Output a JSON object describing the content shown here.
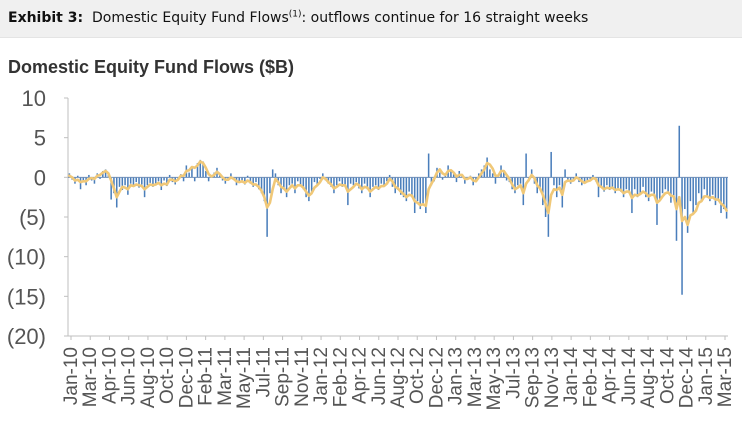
{
  "header": {
    "exhibit_label": "Exhibit 3:",
    "title_main": "Domestic Equity Fund Flows",
    "title_sup": "(1)",
    "title_rest": ": outflows continue for 16 straight weeks"
  },
  "chart_data": {
    "type": "bar",
    "title": "Domestic Equity Fund Flows ($B)",
    "xlabel": "",
    "ylabel": "",
    "ylim": [
      -20,
      10
    ],
    "yticks": [
      10,
      5,
      0,
      -5,
      -10,
      -15,
      -20
    ],
    "ytick_labels": [
      "10",
      "5",
      "0",
      "(5)",
      "(10)",
      "(15)",
      "(20)"
    ],
    "grid": false,
    "legend": "none",
    "colors": {
      "bars": "#4a7ebb",
      "line": "#f0c878",
      "axis": "#bfbfbf"
    },
    "x_labels": [
      "Jan-10",
      "Mar-10",
      "Apr-10",
      "Jun-10",
      "Aug-10",
      "Oct-10",
      "Dec-10",
      "Feb-11",
      "Mar-11",
      "May-11",
      "Jul-11",
      "Sep-11",
      "Nov-11",
      "Jan-12",
      "Feb-12",
      "Apr-12",
      "Jun-12",
      "Aug-12",
      "Oct-12",
      "Dec-12",
      "Jan-13",
      "Mar-13",
      "May-13",
      "Jul-13",
      "Sep-13",
      "Nov-13",
      "Jan-14",
      "Feb-14",
      "Apr-14",
      "Jun-14",
      "Aug-14",
      "Oct-14",
      "Dec-14",
      "Jan-15",
      "Mar-15"
    ],
    "series": [
      {
        "chart_type": "bar",
        "values": [
          0.5,
          -0.3,
          -0.8,
          0.2,
          -1.5,
          -0.6,
          -1.0,
          0.3,
          -0.4,
          -0.8,
          0.5,
          -0.2,
          0.8,
          1.0,
          0.4,
          -2.8,
          -2.0,
          -3.8,
          -1.2,
          -1.6,
          -1.0,
          -2.2,
          -0.8,
          -1.1,
          -0.6,
          -1.3,
          -0.9,
          -2.5,
          -1.0,
          -0.7,
          -1.2,
          -0.8,
          -0.5,
          -1.6,
          -0.4,
          -1.1,
          0.3,
          -0.6,
          -0.9,
          -0.2,
          0.4,
          -0.5,
          1.5,
          0.6,
          1.2,
          -0.5,
          1.8,
          2.2,
          2.0,
          0.8,
          -0.5,
          0.2,
          0.6,
          1.2,
          0.3,
          -0.4,
          -0.8,
          -0.2,
          0.5,
          -0.3,
          -1.0,
          -0.6,
          -0.4,
          -0.9,
          0.2,
          -0.8,
          -1.2,
          -0.6,
          -1.5,
          -2.0,
          -3.0,
          -7.5,
          -2.0,
          1.0,
          0.5,
          -1.0,
          -2.0,
          -1.5,
          -2.5,
          -1.0,
          -0.8,
          -2.0,
          -0.5,
          -1.0,
          -1.5,
          -2.5,
          -3.0,
          -1.8,
          -0.6,
          -1.0,
          -0.2,
          0.5,
          -0.4,
          -0.8,
          -1.2,
          -2.0,
          -1.0,
          -0.5,
          -1.2,
          -1.0,
          -3.5,
          -0.8,
          -1.0,
          -0.6,
          -1.4,
          -2.0,
          -0.8,
          -1.5,
          -2.5,
          -1.2,
          -1.0,
          -1.6,
          -0.8,
          -1.2,
          -0.5,
          0.3,
          -1.2,
          -2.0,
          -1.6,
          -2.2,
          -2.5,
          -3.0,
          -1.8,
          -2.5,
          -4.5,
          -3.0,
          -4.0,
          -3.5,
          -4.5,
          3.0,
          -1.0,
          -0.5,
          1.2,
          0.6,
          -0.3,
          0.2,
          1.5,
          1.0,
          0.4,
          -0.6,
          0.8,
          0.3,
          -0.8,
          -0.2,
          0.2,
          -1.0,
          -0.5,
          0.5,
          1.0,
          1.5,
          2.5,
          1.0,
          0.5,
          -0.8,
          0.2,
          1.5,
          0.8,
          -0.4,
          -0.6,
          -1.5,
          -2.0,
          -1.0,
          -0.8,
          -3.5,
          3.0,
          -0.5,
          1.0,
          -0.8,
          -2.0,
          -1.5,
          -3.5,
          -5.0,
          -7.5,
          3.2,
          -1.0,
          -2.5,
          -1.0,
          -3.8,
          1.0,
          -0.5,
          -0.8,
          -0.4,
          0.5,
          -0.6,
          -1.0,
          -0.8,
          -0.4,
          -0.2,
          0.3,
          -0.5,
          -2.5,
          -1.2,
          -1.8,
          -1.0,
          -1.6,
          -1.2,
          -2.0,
          -1.4,
          -1.8,
          -2.5,
          -1.5,
          -2.0,
          -4.5,
          -1.5,
          -2.5,
          -2.0,
          -1.2,
          -2.5,
          -3.0,
          -1.8,
          -2.2,
          -6.0,
          -3.0,
          -2.0,
          -1.5,
          -1.8,
          -3.2,
          -2.5,
          -8.0,
          6.5,
          -14.8,
          -4.0,
          -7.0,
          -3.0,
          -4.5,
          -3.5,
          -2.0,
          -3.0,
          -1.5,
          -2.5,
          -3.0,
          -2.2,
          -3.5,
          -2.8,
          -4.5,
          -4.0,
          -5.2
        ],
        "note_values_in_billions": ""
      },
      {
        "chart_type": "line",
        "values": [
          0.2,
          0.0,
          -0.4,
          -0.3,
          -0.6,
          -0.5,
          -0.5,
          -0.2,
          -0.1,
          -0.2,
          0.2,
          0.3,
          0.6,
          0.8,
          0.5,
          -0.4,
          -1.4,
          -2.5,
          -1.8,
          -1.2,
          -1.3,
          -1.5,
          -1.0,
          -1.1,
          -0.9,
          -1.0,
          -1.1,
          -1.5,
          -1.2,
          -0.9,
          -1.0,
          -0.9,
          -0.7,
          -1.0,
          -0.8,
          -0.9,
          -0.3,
          -0.3,
          -0.5,
          -0.3,
          0.2,
          0.2,
          0.8,
          0.9,
          1.3,
          1.2,
          1.5,
          2.0,
          1.8,
          1.2,
          0.4,
          0.1,
          0.3,
          0.7,
          0.4,
          0.0,
          -0.3,
          -0.3,
          0.0,
          -0.2,
          -0.5,
          -0.6,
          -0.5,
          -0.7,
          -0.4,
          -0.6,
          -0.9,
          -0.9,
          -1.2,
          -1.7,
          -2.5,
          -3.8,
          -3.2,
          -1.5,
          -0.2,
          -0.6,
          -1.2,
          -1.4,
          -1.8,
          -1.4,
          -1.0,
          -1.4,
          -1.0,
          -1.0,
          -1.3,
          -1.8,
          -2.3,
          -2.0,
          -1.3,
          -1.0,
          -0.6,
          0.0,
          -0.2,
          -0.6,
          -0.9,
          -1.4,
          -1.2,
          -0.9,
          -1.0,
          -1.0,
          -1.8,
          -1.5,
          -1.2,
          -0.8,
          -1.0,
          -1.5,
          -1.2,
          -1.3,
          -1.8,
          -1.5,
          -1.2,
          -1.4,
          -1.1,
          -1.1,
          -0.8,
          -0.2,
          -0.5,
          -1.2,
          -1.4,
          -1.8,
          -2.1,
          -2.5,
          -2.2,
          -2.3,
          -3.0,
          -3.2,
          -3.5,
          -3.4,
          -3.6,
          -1.5,
          -0.8,
          -0.2,
          0.6,
          1.0,
          0.5,
          0.3,
          0.8,
          0.9,
          0.6,
          0.1,
          0.3,
          0.3,
          -0.2,
          -0.2,
          0.0,
          -0.4,
          -0.5,
          0.0,
          0.5,
          1.0,
          1.8,
          1.6,
          1.1,
          0.2,
          0.2,
          0.8,
          0.8,
          0.3,
          -0.2,
          -0.9,
          -1.5,
          -1.3,
          -1.0,
          -2.0,
          -0.8,
          -0.3,
          0.3,
          -0.1,
          -1.0,
          -1.4,
          -2.2,
          -3.3,
          -4.5,
          -2.2,
          -1.5,
          -1.6,
          -1.3,
          -2.2,
          -0.6,
          -0.4,
          -0.5,
          -0.4,
          0.0,
          -0.2,
          -0.5,
          -0.7,
          -0.5,
          -0.4,
          -0.1,
          -0.2,
          -1.0,
          -1.2,
          -1.5,
          -1.3,
          -1.4,
          -1.3,
          -1.6,
          -1.5,
          -1.6,
          -2.0,
          -1.8,
          -1.8,
          -2.6,
          -2.2,
          -2.3,
          -2.1,
          -1.8,
          -2.0,
          -2.4,
          -2.2,
          -2.2,
          -3.2,
          -2.9,
          -2.4,
          -2.0,
          -1.9,
          -2.3,
          -2.4,
          -4.0,
          -2.5,
          -5.5,
          -5.0,
          -6.0,
          -4.8,
          -4.6,
          -4.2,
          -3.2,
          -3.0,
          -2.4,
          -2.4,
          -2.6,
          -2.5,
          -2.8,
          -2.8,
          -3.3,
          -3.6,
          -4.2
        ]
      }
    ]
  }
}
